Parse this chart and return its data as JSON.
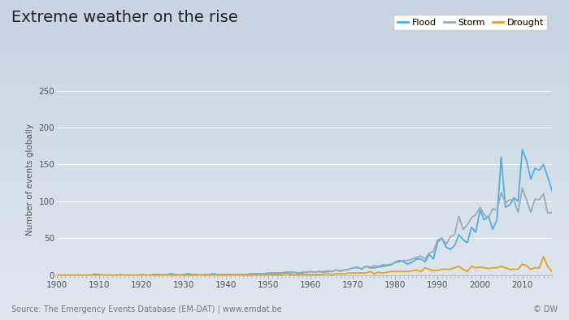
{
  "title": "Extreme weather on the rise",
  "ylabel": "Number of events globally",
  "source_text": "Source: The Emergency Events Database (EM-DAT) | www.emdat.be",
  "copyright_text": "© DW",
  "flood_color": "#4daee8",
  "storm_color": "#9aabb8",
  "drought_color": "#e8a020",
  "bg_top": "#c8d4e0",
  "bg_bottom": "#e0e8f0",
  "ylim": [
    0,
    260
  ],
  "yticks": [
    0,
    50,
    100,
    150,
    200,
    250
  ],
  "years": [
    1900,
    1901,
    1902,
    1903,
    1904,
    1905,
    1906,
    1907,
    1908,
    1909,
    1910,
    1911,
    1912,
    1913,
    1914,
    1915,
    1916,
    1917,
    1918,
    1919,
    1920,
    1921,
    1922,
    1923,
    1924,
    1925,
    1926,
    1927,
    1928,
    1929,
    1930,
    1931,
    1932,
    1933,
    1934,
    1935,
    1936,
    1937,
    1938,
    1939,
    1940,
    1941,
    1942,
    1943,
    1944,
    1945,
    1946,
    1947,
    1948,
    1949,
    1950,
    1951,
    1952,
    1953,
    1954,
    1955,
    1956,
    1957,
    1958,
    1959,
    1960,
    1961,
    1962,
    1963,
    1964,
    1965,
    1966,
    1967,
    1968,
    1969,
    1970,
    1971,
    1972,
    1973,
    1974,
    1975,
    1976,
    1977,
    1978,
    1979,
    1980,
    1981,
    1982,
    1983,
    1984,
    1985,
    1986,
    1987,
    1988,
    1989,
    1990,
    1991,
    1992,
    1993,
    1994,
    1995,
    1996,
    1997,
    1998,
    1999,
    2000,
    2001,
    2002,
    2003,
    2004,
    2005,
    2006,
    2007,
    2008,
    2009,
    2010,
    2011,
    2012,
    2013,
    2014,
    2015,
    2016,
    2017
  ],
  "flood": [
    0,
    0,
    0,
    0,
    0,
    0,
    0,
    0,
    0,
    0,
    1,
    0,
    0,
    0,
    0,
    0,
    0,
    0,
    0,
    0,
    0,
    0,
    0,
    1,
    1,
    0,
    1,
    2,
    1,
    0,
    1,
    2,
    1,
    1,
    0,
    1,
    1,
    2,
    1,
    1,
    1,
    1,
    1,
    1,
    1,
    1,
    2,
    2,
    2,
    2,
    3,
    3,
    3,
    3,
    4,
    4,
    4,
    3,
    4,
    4,
    5,
    4,
    5,
    4,
    5,
    5,
    7,
    6,
    7,
    8,
    10,
    11,
    8,
    12,
    10,
    10,
    11,
    12,
    13,
    14,
    18,
    20,
    18,
    15,
    18,
    22,
    22,
    18,
    28,
    22,
    45,
    50,
    38,
    35,
    40,
    55,
    48,
    44,
    65,
    58,
    88,
    75,
    80,
    62,
    75,
    160,
    92,
    95,
    105,
    100,
    170,
    155,
    130,
    145,
    142,
    150,
    133,
    115
  ],
  "storm": [
    0,
    0,
    0,
    0,
    0,
    0,
    0,
    0,
    0,
    0,
    0,
    0,
    0,
    0,
    0,
    1,
    0,
    0,
    0,
    0,
    0,
    0,
    0,
    0,
    0,
    0,
    1,
    1,
    1,
    0,
    1,
    0,
    0,
    0,
    0,
    1,
    1,
    1,
    1,
    1,
    1,
    0,
    1,
    1,
    0,
    1,
    2,
    1,
    2,
    1,
    2,
    2,
    2,
    2,
    3,
    3,
    4,
    3,
    3,
    4,
    5,
    4,
    5,
    5,
    6,
    5,
    7,
    5,
    7,
    8,
    10,
    10,
    9,
    12,
    11,
    13,
    12,
    14,
    14,
    15,
    17,
    18,
    20,
    20,
    22,
    24,
    26,
    22,
    30,
    32,
    48,
    50,
    42,
    52,
    55,
    80,
    62,
    68,
    78,
    82,
    92,
    82,
    78,
    90,
    88,
    112,
    98,
    102,
    102,
    85,
    118,
    102,
    85,
    103,
    102,
    110,
    84,
    85
  ],
  "drought": [
    0,
    0,
    0,
    0,
    0,
    0,
    0,
    0,
    0,
    2,
    0,
    0,
    0,
    0,
    0,
    0,
    0,
    0,
    0,
    0,
    1,
    0,
    0,
    0,
    0,
    1,
    0,
    0,
    0,
    0,
    1,
    0,
    1,
    0,
    0,
    0,
    1,
    1,
    0,
    0,
    0,
    0,
    0,
    0,
    0,
    0,
    0,
    0,
    1,
    0,
    1,
    1,
    1,
    1,
    2,
    1,
    1,
    1,
    1,
    1,
    1,
    1,
    1,
    1,
    2,
    1,
    2,
    2,
    2,
    3,
    3,
    3,
    3,
    3,
    5,
    2,
    4,
    3,
    4,
    5,
    5,
    5,
    5,
    5,
    6,
    7,
    5,
    10,
    8,
    6,
    7,
    8,
    8,
    8,
    10,
    12,
    8,
    5,
    12,
    10,
    11,
    10,
    9,
    10,
    10,
    12,
    10,
    8,
    8,
    8,
    15,
    13,
    8,
    10,
    10,
    25,
    12,
    5
  ]
}
